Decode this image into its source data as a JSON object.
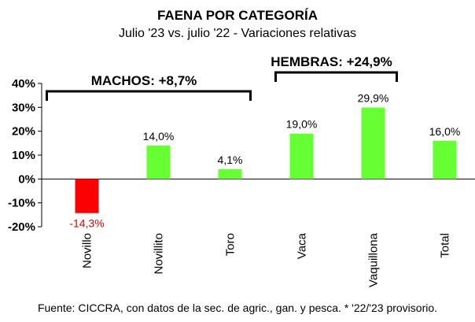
{
  "chart_data": {
    "type": "bar",
    "title": "FAENA POR CATEGORÍA",
    "subtitle": "Julio '23 vs. julio '22 - Variaciones relativas",
    "categories": [
      "Novillo",
      "Novillito",
      "Toro",
      "Vaca",
      "Vaquillona",
      "Total"
    ],
    "values": [
      -14.3,
      14.0,
      4.1,
      19.0,
      29.9,
      16.0
    ],
    "value_labels": [
      "-14,3%",
      "14,0%",
      "4,1%",
      "19,0%",
      "29,9%",
      "16,0%"
    ],
    "ylim": [
      -20,
      40
    ],
    "yticks": [
      -20,
      -10,
      0,
      10,
      20,
      30,
      40
    ],
    "ytick_labels": [
      "-20%",
      "-10%",
      "0%",
      "10%",
      "20%",
      "30%",
      "40%"
    ],
    "grid": false,
    "colors": {
      "positive": "#66FF33",
      "negative": "#FF0000",
      "negative_label": "#E00000"
    },
    "group_labels": [
      {
        "text": "MACHOS: +8,7%",
        "categories": [
          "Novillo",
          "Novillito",
          "Toro"
        ]
      },
      {
        "text": "HEMBRAS: +24,9%",
        "categories": [
          "Vaca",
          "Vaquillona"
        ]
      }
    ],
    "source": "Fuente: CICCRA, con datos de la sec. de agric., gan. y pesca. * '22/'23 provisorio."
  }
}
